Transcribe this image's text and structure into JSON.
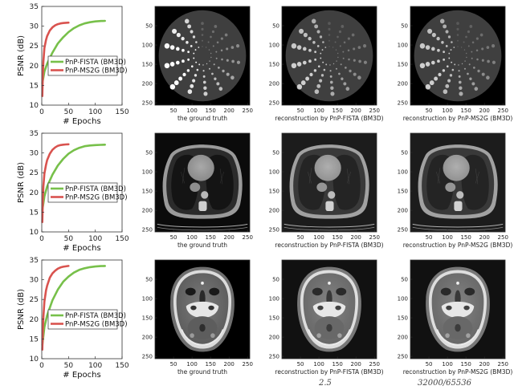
{
  "figure": {
    "footer_formula": {
      "left": "2.5",
      "right": "32000/65536"
    }
  },
  "chart_data": [
    {
      "type": "line",
      "row": 0,
      "xlabel": "# Epochs",
      "ylabel": "PSNR (dB)",
      "xlim": [
        0,
        150
      ],
      "ylim": [
        10,
        35
      ],
      "xticks": [
        0,
        50,
        100,
        150
      ],
      "yticks": [
        10,
        15,
        20,
        25,
        30,
        35
      ],
      "legend": "center-right",
      "series": [
        {
          "name": "PnP-FISTA (BM3D)",
          "color": "#77c04a",
          "x": [
            1,
            5,
            10,
            20,
            30,
            40,
            50,
            60,
            70,
            80,
            90,
            100,
            110,
            118
          ],
          "values": [
            15.5,
            18.5,
            20.5,
            23.3,
            25.6,
            27.2,
            28.5,
            29.5,
            30.2,
            30.7,
            31.0,
            31.2,
            31.3,
            31.35
          ]
        },
        {
          "name": "PnP-MS2G (BM3D)",
          "color": "#d9534f",
          "x": [
            1,
            2,
            3,
            5,
            8,
            10,
            15,
            20,
            25,
            30,
            35,
            40,
            45,
            50
          ],
          "values": [
            12.3,
            17.5,
            21,
            24.5,
            26.5,
            27.5,
            28.9,
            29.7,
            30.2,
            30.5,
            30.7,
            30.8,
            30.85,
            30.9
          ]
        }
      ]
    },
    {
      "type": "line",
      "row": 1,
      "xlabel": "# Epochs",
      "ylabel": "PSNR (dB)",
      "xlim": [
        0,
        150
      ],
      "ylim": [
        10,
        35
      ],
      "xticks": [
        0,
        50,
        100,
        150
      ],
      "yticks": [
        10,
        15,
        20,
        25,
        30,
        35
      ],
      "legend": "center-right",
      "series": [
        {
          "name": "PnP-FISTA (BM3D)",
          "color": "#77c04a",
          "x": [
            1,
            5,
            10,
            20,
            30,
            40,
            50,
            60,
            70,
            80,
            90,
            100,
            110,
            118
          ],
          "values": [
            15.5,
            19,
            21.5,
            24.5,
            26.8,
            28.5,
            29.8,
            30.7,
            31.3,
            31.7,
            31.9,
            32.0,
            32.05,
            32.1
          ]
        },
        {
          "name": "PnP-MS2G (BM3D)",
          "color": "#d9534f",
          "x": [
            1,
            2,
            3,
            5,
            8,
            10,
            15,
            20,
            25,
            30,
            35,
            40,
            45,
            50
          ],
          "values": [
            12.5,
            18,
            21.5,
            24.8,
            27,
            28.2,
            29.8,
            30.8,
            31.4,
            31.8,
            32.0,
            32.1,
            32.15,
            32.2
          ]
        }
      ]
    },
    {
      "type": "line",
      "row": 2,
      "xlabel": "# Epochs",
      "ylabel": "PSNR (dB)",
      "xlim": [
        0,
        150
      ],
      "ylim": [
        10,
        35
      ],
      "xticks": [
        0,
        50,
        100,
        150
      ],
      "yticks": [
        10,
        15,
        20,
        25,
        30,
        35
      ],
      "legend": "center-right",
      "series": [
        {
          "name": "PnP-FISTA (BM3D)",
          "color": "#77c04a",
          "x": [
            1,
            5,
            10,
            20,
            30,
            40,
            50,
            60,
            70,
            80,
            90,
            100,
            110,
            118
          ],
          "values": [
            13.5,
            18,
            21,
            24.8,
            27.5,
            29.5,
            30.8,
            31.8,
            32.5,
            32.9,
            33.2,
            33.35,
            33.45,
            33.5
          ]
        },
        {
          "name": "PnP-MS2G (BM3D)",
          "color": "#d9534f",
          "x": [
            1,
            2,
            3,
            5,
            8,
            10,
            15,
            20,
            25,
            30,
            35,
            40,
            45,
            50
          ],
          "values": [
            12.3,
            17,
            20.5,
            24.5,
            27.3,
            28.5,
            30.5,
            31.6,
            32.3,
            32.8,
            33.1,
            33.3,
            33.4,
            33.5
          ]
        }
      ]
    }
  ],
  "image_panels": {
    "ticks": [
      50,
      100,
      150,
      200,
      250
    ],
    "captions": [
      "the ground truth",
      "reconstruction by PnP-FISTA (BM3D)",
      "reconstruction by PnP-MS2G (BM3D)"
    ],
    "rows": [
      {
        "subject": "phantom"
      },
      {
        "subject": "chest"
      },
      {
        "subject": "head"
      }
    ]
  }
}
